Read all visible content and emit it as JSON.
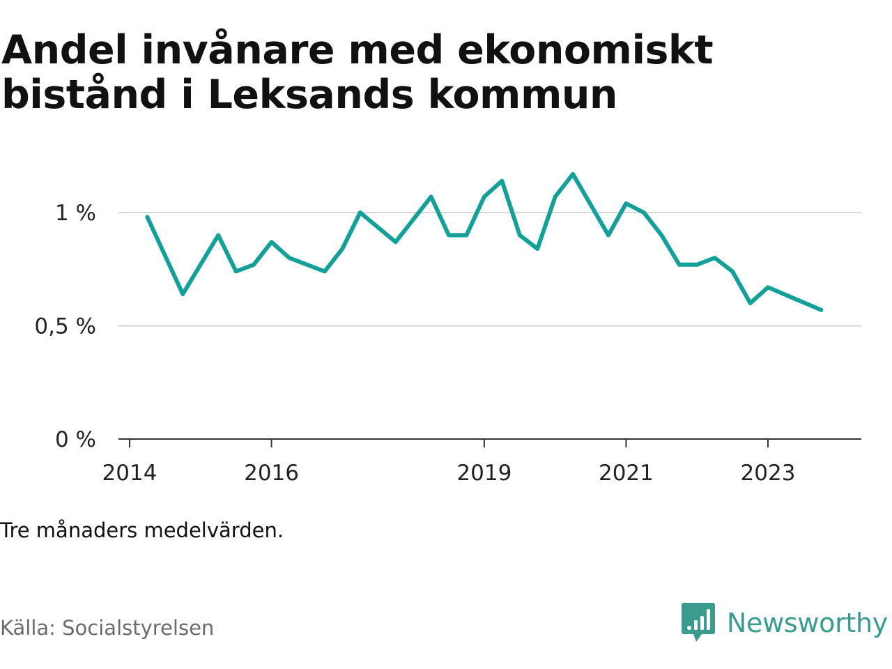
{
  "title": "Andel invånare med ekonomiskt bistånd i Leksands kommun",
  "note": "Tre månaders medelvärden.",
  "source": "Källa: Socialstyrelsen",
  "brand": {
    "name": "Newsworthy",
    "icon": "newsworthy-logo-icon",
    "color": "#3a9c8c"
  },
  "chart_data": {
    "type": "line",
    "title": "Andel invånare med ekonomiskt bistånd i Leksands kommun",
    "xlabel": "",
    "ylabel": "",
    "x_ticks": [
      "2014",
      "2016",
      "2019",
      "2021",
      "2023"
    ],
    "y_ticks": [
      "0 %",
      "0,5 %",
      "1 %"
    ],
    "y_range": [
      0,
      1.2
    ],
    "grid": true,
    "line_color": "#14a098",
    "series": [
      {
        "name": "",
        "points": [
          {
            "x": "2014-04",
            "y": 0.98
          },
          {
            "x": "2014-10",
            "y": 0.64
          },
          {
            "x": "2015-04",
            "y": 0.9
          },
          {
            "x": "2015-07",
            "y": 0.74
          },
          {
            "x": "2015-10",
            "y": 0.77
          },
          {
            "x": "2016-01",
            "y": 0.87
          },
          {
            "x": "2016-04",
            "y": 0.8
          },
          {
            "x": "2016-10",
            "y": 0.74
          },
          {
            "x": "2017-01",
            "y": 0.84
          },
          {
            "x": "2017-04",
            "y": 1.0
          },
          {
            "x": "2017-10",
            "y": 0.87
          },
          {
            "x": "2018-04",
            "y": 1.07
          },
          {
            "x": "2018-07",
            "y": 0.9
          },
          {
            "x": "2018-10",
            "y": 0.9
          },
          {
            "x": "2019-01",
            "y": 1.07
          },
          {
            "x": "2019-04",
            "y": 1.14
          },
          {
            "x": "2019-07",
            "y": 0.9
          },
          {
            "x": "2019-10",
            "y": 0.84
          },
          {
            "x": "2020-01",
            "y": 1.07
          },
          {
            "x": "2020-04",
            "y": 1.17
          },
          {
            "x": "2020-10",
            "y": 0.9
          },
          {
            "x": "2021-01",
            "y": 1.04
          },
          {
            "x": "2021-04",
            "y": 1.0
          },
          {
            "x": "2021-07",
            "y": 0.9
          },
          {
            "x": "2021-10",
            "y": 0.77
          },
          {
            "x": "2022-01",
            "y": 0.77
          },
          {
            "x": "2022-04",
            "y": 0.8
          },
          {
            "x": "2022-07",
            "y": 0.74
          },
          {
            "x": "2022-10",
            "y": 0.6
          },
          {
            "x": "2023-01",
            "y": 0.67
          },
          {
            "x": "2023-10",
            "y": 0.57
          }
        ]
      }
    ]
  }
}
